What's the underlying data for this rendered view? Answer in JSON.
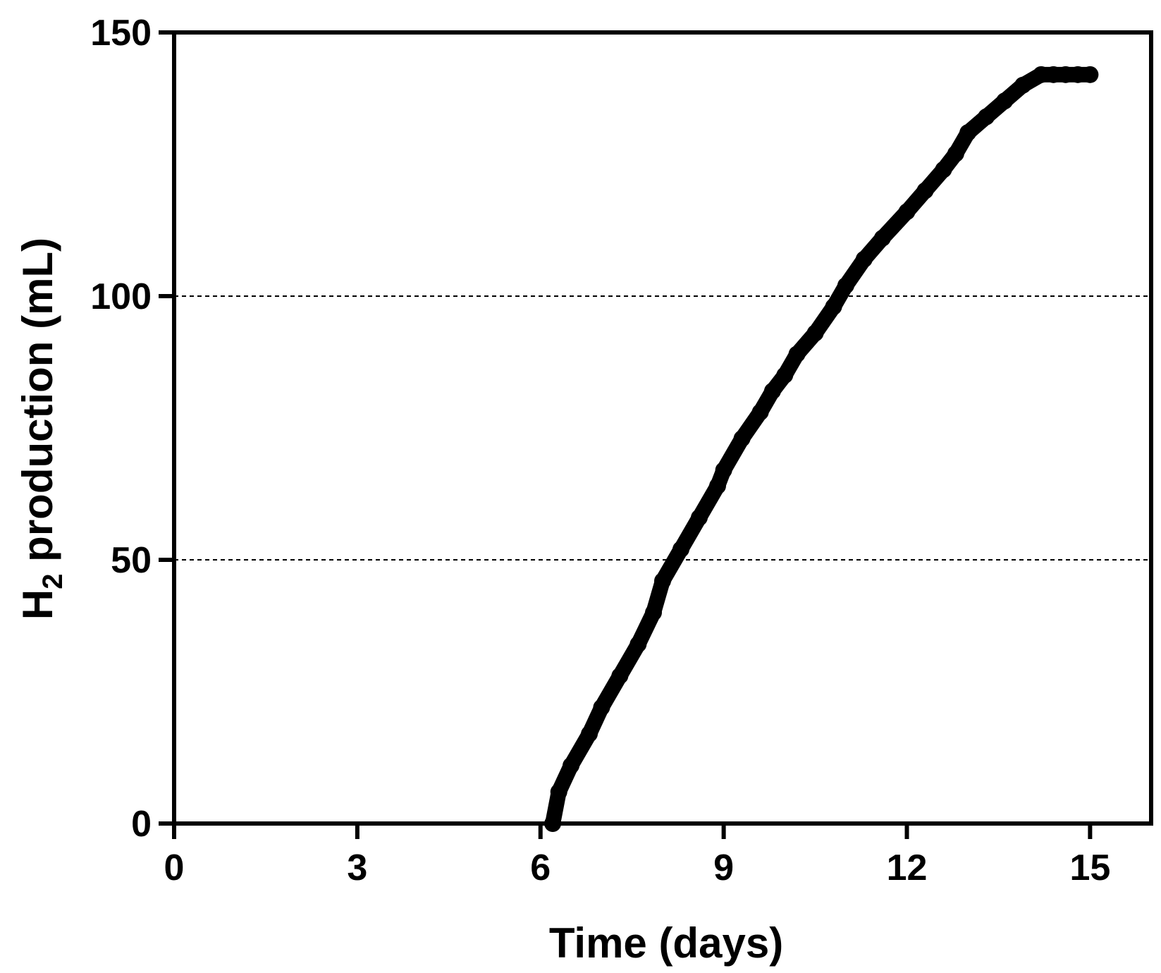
{
  "chart_data": {
    "type": "scatter",
    "xlabel": "Time (days)",
    "ylabel_main": "H",
    "ylabel_subscript": "2",
    "ylabel_rest": " production (mL)",
    "xlim": [
      0,
      16
    ],
    "ylim": [
      0,
      150
    ],
    "x_ticks": [
      0,
      3,
      6,
      9,
      12,
      15
    ],
    "y_ticks": [
      0,
      50,
      100,
      150
    ],
    "x_tick_labels": [
      "0",
      "3",
      "6",
      "9",
      "12",
      "15"
    ],
    "y_tick_labels": [
      "0",
      "50",
      "100",
      "150"
    ],
    "dashed_gridlines_y": [
      50,
      100
    ],
    "series": [
      {
        "color": "#000000",
        "x": [
          6.2,
          6.3,
          6.5,
          6.8,
          7.0,
          7.3,
          7.6,
          7.85,
          8.0,
          8.3,
          8.6,
          8.9,
          9.0,
          9.3,
          9.6,
          9.8,
          10.0,
          10.2,
          10.5,
          10.8,
          11.0,
          11.3,
          11.6,
          12.0,
          12.3,
          12.6,
          12.8,
          13.0,
          13.3,
          13.6,
          13.9,
          14.2,
          14.4,
          14.6,
          14.8,
          15.0
        ],
        "y": [
          0,
          6,
          11,
          17,
          22,
          28,
          34,
          40,
          46,
          52,
          58,
          64,
          67,
          73,
          78,
          82,
          85,
          89,
          93,
          98,
          102,
          107,
          111,
          116,
          120,
          124,
          127,
          131,
          134,
          137,
          140,
          142,
          142,
          142,
          142,
          142
        ]
      }
    ]
  }
}
